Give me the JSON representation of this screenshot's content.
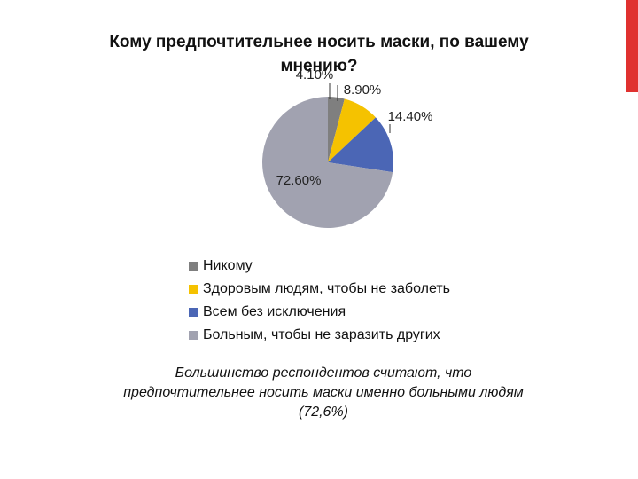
{
  "slide": {
    "caption": "Большинство респондентов считают, что предпочтительнее носить маски именно больными людям (72,6%)",
    "accent_color": "#e0312f"
  },
  "chart_data": {
    "type": "pie",
    "title": "Кому предпочтительнее носить маски, по вашему мнению?",
    "categories": [
      "Никому",
      "Здоровым людям, чтобы не заболеть",
      "Всем без исключения",
      "Больным, чтобы не заразить других"
    ],
    "values": [
      4.1,
      8.9,
      14.4,
      72.6
    ],
    "data_labels": [
      "4.10%",
      "8.90%",
      "14.40%",
      "72.60%"
    ],
    "colors": [
      "#7f7f7f",
      "#f5c200",
      "#4b66b5",
      "#a1a2b0"
    ],
    "legend_position": "bottom"
  }
}
